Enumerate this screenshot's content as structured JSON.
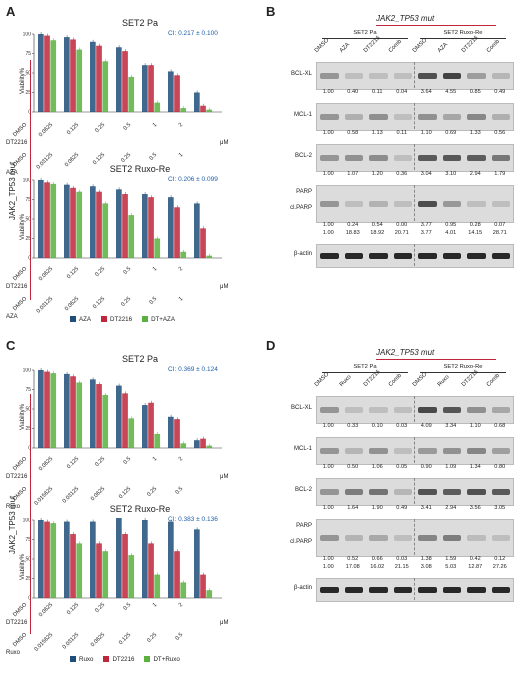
{
  "panels": {
    "A": "A",
    "B": "B",
    "C": "C",
    "D": "D"
  },
  "mutation_label": "JAK2_TP53 mut",
  "y_axis_label": "Viability%",
  "unit": "μM",
  "panel_A": {
    "legend": [
      "AZA",
      "DT2216",
      "DT+AZA"
    ],
    "colors": [
      "#1f4e79",
      "#c0263b",
      "#5bb040"
    ],
    "row_labels": [
      "DT2216",
      "AZA"
    ],
    "dt_ticks": [
      "DMSO",
      "0.0625",
      "0.125",
      "0.25",
      "0.5",
      "1",
      "2"
    ],
    "drug_ticks": [
      "DMSO",
      "0.03125",
      "0.0625",
      "0.125",
      "0.25",
      "0.5",
      "1"
    ],
    "charts": [
      {
        "title": "SET2 Pa",
        "ci": "CI: 0.217 ± 0.100"
      },
      {
        "title": "SET2 Ruxo-Re",
        "ci": "CI: 0.206 ± 0.099"
      }
    ]
  },
  "panel_C": {
    "legend": [
      "Ruxo",
      "DT2216",
      "DT+Ruxo"
    ],
    "colors": [
      "#1f4e79",
      "#c0263b",
      "#5bb040"
    ],
    "row_labels": [
      "DT2216",
      "Ruxo"
    ],
    "dt_ticks": [
      "DMSO",
      "0.0625",
      "0.125",
      "0.25",
      "0.5",
      "1",
      "2"
    ],
    "drug_ticks": [
      "DMSO",
      "0.015625",
      "0.03125",
      "0.0625",
      "0.125",
      "0.25",
      "0.5"
    ],
    "charts": [
      {
        "title": "SET2 Pa",
        "ci": "CI: 0.369 ± 0.124"
      },
      {
        "title": "SET2 Ruxo-Re",
        "ci": "CI: 0.383 ± 0.136"
      }
    ]
  },
  "chart_data": [
    {
      "type": "bar",
      "title": "SET2 Pa",
      "categories": [
        "DMSO",
        "0.0625",
        "0.125",
        "0.25",
        "0.5",
        "1",
        "2"
      ],
      "ylim": [
        0,
        100
      ],
      "series": [
        {
          "name": "AZA",
          "values": [
            100,
            96,
            90,
            83,
            60,
            52,
            25
          ]
        },
        {
          "name": "DT2216",
          "values": [
            98,
            93,
            85,
            78,
            60,
            47,
            8
          ]
        },
        {
          "name": "DT+AZA",
          "values": [
            92,
            80,
            65,
            45,
            12,
            5,
            3
          ]
        }
      ]
    },
    {
      "type": "bar",
      "title": "SET2 Ruxo-Re",
      "categories": [
        "DMSO",
        "0.0625",
        "0.125",
        "0.25",
        "0.5",
        "1",
        "2"
      ],
      "ylim": [
        0,
        100
      ],
      "series": [
        {
          "name": "AZA",
          "values": [
            100,
            94,
            92,
            88,
            82,
            78,
            70
          ]
        },
        {
          "name": "DT2216",
          "values": [
            97,
            90,
            85,
            82,
            78,
            65,
            38
          ]
        },
        {
          "name": "DT+AZA",
          "values": [
            95,
            85,
            70,
            55,
            25,
            8,
            3
          ]
        }
      ]
    },
    {
      "type": "bar",
      "title": "SET2 Pa",
      "categories": [
        "DMSO",
        "0.0625",
        "0.125",
        "0.25",
        "0.5",
        "1",
        "2"
      ],
      "ylim": [
        0,
        100
      ],
      "series": [
        {
          "name": "Ruxo",
          "values": [
            100,
            95,
            88,
            80,
            55,
            40,
            10
          ]
        },
        {
          "name": "DT2216",
          "values": [
            98,
            92,
            82,
            70,
            58,
            37,
            12
          ]
        },
        {
          "name": "DT+Ruxo",
          "values": [
            96,
            84,
            68,
            38,
            18,
            6,
            3
          ]
        }
      ]
    },
    {
      "type": "bar",
      "title": "SET2 Ruxo-Re",
      "categories": [
        "DMSO",
        "0.0625",
        "0.125",
        "0.25",
        "0.5",
        "1",
        "2"
      ],
      "ylim": [
        0,
        100
      ],
      "series": [
        {
          "name": "Ruxo",
          "values": [
            100,
            98,
            98,
            105,
            100,
            98,
            88
          ]
        },
        {
          "name": "DT2216",
          "values": [
            98,
            82,
            70,
            82,
            70,
            60,
            30
          ]
        },
        {
          "name": "DT+Ruxo",
          "values": [
            96,
            70,
            60,
            55,
            30,
            20,
            10
          ]
        }
      ]
    }
  ],
  "panel_B": {
    "title": "JAK2_TP53 mut",
    "groups": [
      "SET2 Pa",
      "SET2 Ruxo-Re"
    ],
    "lanes": [
      "DMSO",
      "AZA",
      "DT2216",
      "Comb",
      "DMSO",
      "AZA",
      "DT2216",
      "Comb"
    ],
    "rows": [
      {
        "protein": "BCL-XL",
        "values": [
          "1.00",
          "0.40",
          "0.11",
          "0.04",
          "3.64",
          "4.55",
          "0.85",
          "0.49"
        ]
      },
      {
        "protein": "MCL-1",
        "values": [
          "1.00",
          "0.58",
          "1.13",
          "0.11",
          "1.10",
          "0.69",
          "1.33",
          "0.56"
        ]
      },
      {
        "protein": "BCL-2",
        "values": [
          "1.00",
          "1.07",
          "1.20",
          "0.36",
          "3.04",
          "3.10",
          "2.94",
          "1.79"
        ]
      },
      {
        "protein": "PARP",
        "protein2": "cl.PARP",
        "values": [
          "1.00",
          "0.24",
          "0.54",
          "0.00",
          "3.77",
          "0.95",
          "0.28",
          "0.07"
        ],
        "values2": [
          "1.00",
          "18.83",
          "18.92",
          "20.71",
          "3.77",
          "4.01",
          "14.15",
          "28.71"
        ]
      },
      {
        "protein": "β-actin",
        "values": []
      }
    ]
  },
  "panel_D": {
    "title": "JAK2_TP53 mut",
    "groups": [
      "SET2 Pa",
      "SET2 Ruxo-Re"
    ],
    "lanes": [
      "DMSO",
      "Ruxo",
      "DT2216",
      "Comb",
      "DMSO",
      "Ruxo",
      "DT2216",
      "Comb"
    ],
    "rows": [
      {
        "protein": "BCL-XL",
        "values": [
          "1.00",
          "0.33",
          "0.10",
          "0.03",
          "4.09",
          "3.34",
          "1.10",
          "0.68"
        ]
      },
      {
        "protein": "MCL-1",
        "values": [
          "1.00",
          "0.50",
          "1.06",
          "0.05",
          "0.90",
          "1.09",
          "1.34",
          "0.80"
        ]
      },
      {
        "protein": "BCL-2",
        "values": [
          "1.00",
          "1.64",
          "1.90",
          "0.49",
          "3.41",
          "2.94",
          "3.56",
          "3.05"
        ]
      },
      {
        "protein": "PARP",
        "protein2": "cl.PARP",
        "values": [
          "1.00",
          "0.52",
          "0.66",
          "0.03",
          "1.38",
          "1.59",
          "0.42",
          "0.12"
        ],
        "values2": [
          "1.00",
          "17.08",
          "16.02",
          "21.15",
          "3.08",
          "5.03",
          "12.87",
          "27.26"
        ]
      },
      {
        "protein": "β-actin",
        "values": []
      }
    ]
  }
}
